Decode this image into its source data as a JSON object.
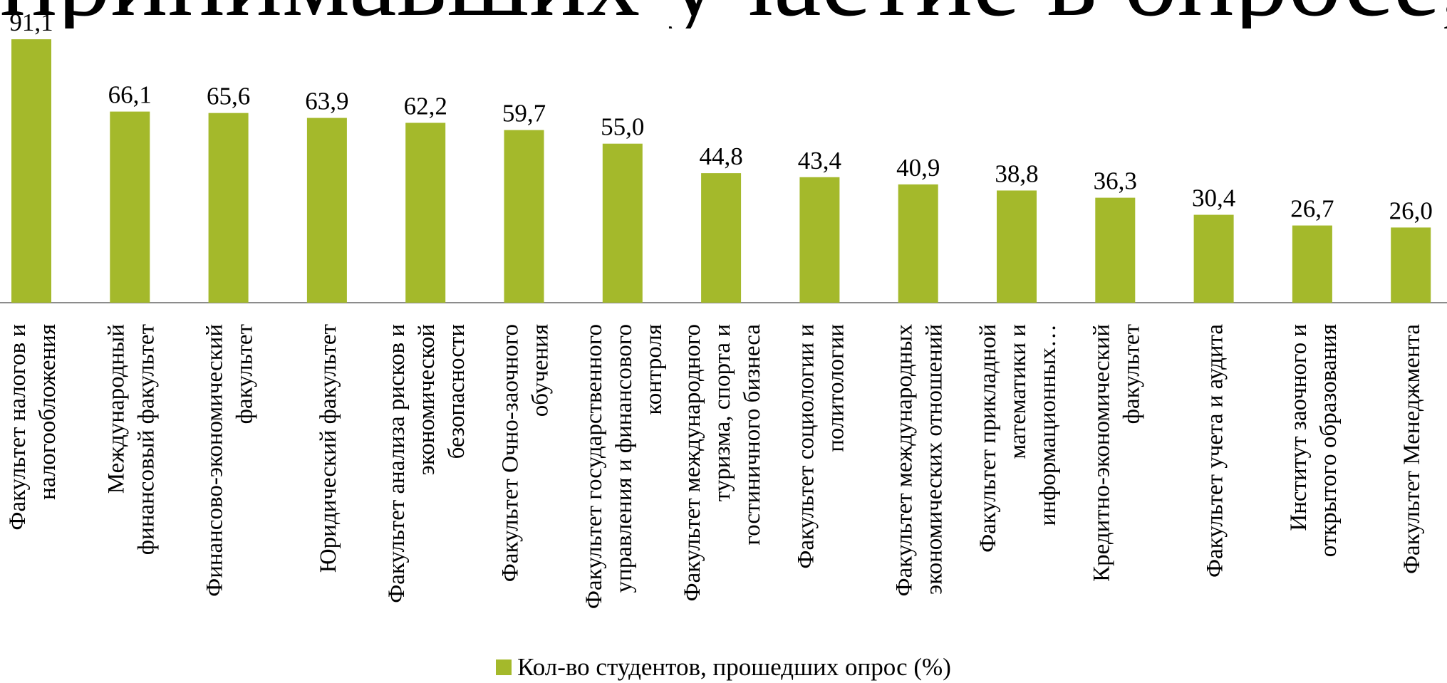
{
  "title": "принимавших участие в опросе, по факультетам",
  "legend": {
    "label": "Кол-во студентов, прошедших опрос (%)"
  },
  "colors": {
    "bar": "#a4b92b",
    "axis": "#8c8c8c",
    "text": "#000000"
  },
  "chart_data": {
    "type": "bar",
    "categories": [
      [
        "Факультет налогов и",
        "налогообложения"
      ],
      [
        "Международный",
        "финансовый факультет"
      ],
      [
        "Финансово-экономический",
        "факультет"
      ],
      [
        "Юридический факультет"
      ],
      [
        "Факультет анализа рисков и",
        "экономической",
        "безопасности"
      ],
      [
        "Факультет Очно-заочного",
        "обучения"
      ],
      [
        "Факультет государственного",
        "управления и финансового",
        "контроля"
      ],
      [
        "Факультет международного",
        "туризма, спорта и",
        "гостиничного бизнеса"
      ],
      [
        "Факультет социологии и",
        "политологии"
      ],
      [
        "Факультет международных",
        "экономических отношений"
      ],
      [
        "Факультет прикладной",
        "математики и",
        "информационных…"
      ],
      [
        "Кредитно-экономический",
        "факультет"
      ],
      [
        "Факультет учета и аудита"
      ],
      [
        "Институт заочного и",
        "открытого образования"
      ],
      [
        "Факультет Менеджмента"
      ]
    ],
    "values": [
      91.1,
      66.1,
      65.6,
      63.9,
      62.2,
      59.7,
      55.0,
      44.8,
      43.4,
      40.9,
      38.8,
      36.3,
      30.4,
      26.7,
      26.0
    ],
    "data_labels": [
      "91,1",
      "66,1",
      "65,6",
      "63,9",
      "62,2",
      "59,7",
      "55,0",
      "44,8",
      "43,4",
      "40,9",
      "38,8",
      "36,3",
      "30,4",
      "26,7",
      "26,0"
    ],
    "series": [
      {
        "name": "Кол-во студентов, прошедших опрос (%)"
      }
    ],
    "legend_position": "bottom",
    "grid": false
  }
}
